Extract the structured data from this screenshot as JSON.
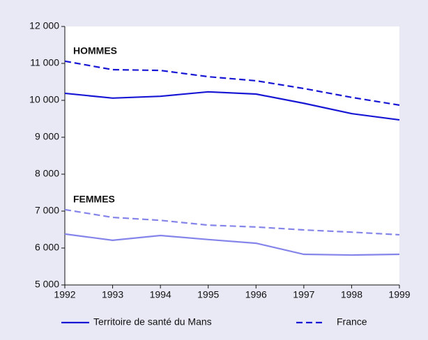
{
  "chart_data": {
    "type": "line",
    "x": [
      1992,
      1993,
      1994,
      1995,
      1996,
      1997,
      1998,
      1999
    ],
    "xlim": [
      1992,
      1999
    ],
    "xticks": [
      1992,
      1993,
      1994,
      1995,
      1996,
      1997,
      1998,
      1999
    ],
    "ylim": [
      5000,
      12000
    ],
    "yticks": [
      {
        "value": 5000,
        "label": "5 000"
      },
      {
        "value": 6000,
        "label": "6 000"
      },
      {
        "value": 7000,
        "label": "7 000"
      },
      {
        "value": 8000,
        "label": "8 000"
      },
      {
        "value": 9000,
        "label": "9 000"
      },
      {
        "value": 10000,
        "label": "10 000"
      },
      {
        "value": 11000,
        "label": "11 000"
      },
      {
        "value": 12000,
        "label": "12 000"
      }
    ],
    "legend": [
      {
        "name": "Territoire de santé du Mans",
        "dashed": false
      },
      {
        "name": "France",
        "dashed": true
      }
    ],
    "groups": [
      {
        "label": "HOMMES",
        "color": "#1616d4",
        "series": [
          {
            "values": [
              10190,
              10060,
              10110,
              10230,
              10170,
              9920,
              9640,
              9470
            ]
          },
          {
            "values": [
              11060,
              10830,
              10810,
              10640,
              10530,
              10320,
              10080,
              9870
            ]
          }
        ]
      },
      {
        "label": "FEMMES",
        "color": "#8484ea",
        "series": [
          {
            "values": [
              6380,
              6210,
              6340,
              6230,
              6130,
              5830,
              5810,
              5830
            ]
          },
          {
            "values": [
              7040,
              6830,
              6750,
              6620,
              6570,
              6490,
              6430,
              6360
            ]
          }
        ]
      }
    ]
  }
}
